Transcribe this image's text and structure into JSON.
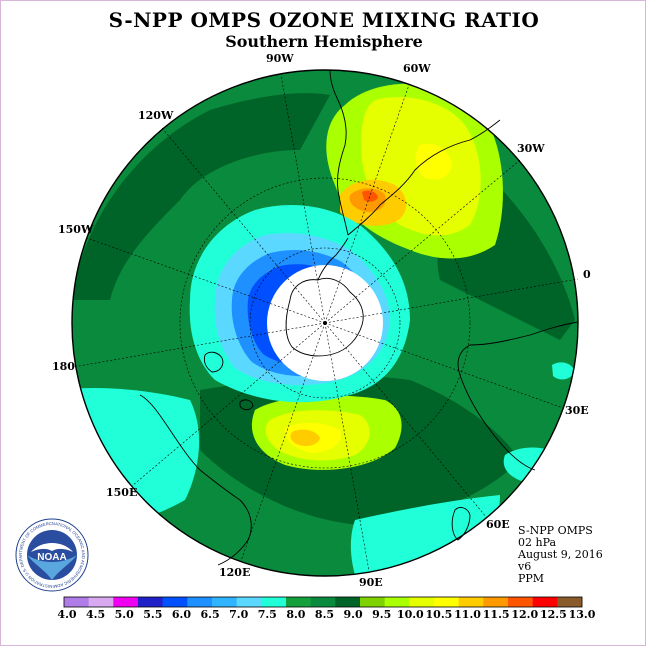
{
  "header": {
    "title": "S-NPP OMPS OZONE MIXING RATIO",
    "subtitle": "Southern Hemisphere"
  },
  "map": {
    "projection": "south-polar-stereographic",
    "longitude_labels": [
      "90W",
      "60W",
      "30W",
      "0",
      "30E",
      "60E",
      "90E",
      "120E",
      "150E",
      "180",
      "150W",
      "120W"
    ],
    "colors": {
      "ocean_background": "#0a8a3c",
      "land_outline": "#000000",
      "pole_fill": "#ffffff"
    }
  },
  "info": {
    "instrument": "S-NPP OMPS",
    "level": "02 hPa",
    "date": "August 9, 2016",
    "version": "v6",
    "units": "PPM"
  },
  "colorbar": {
    "ticks": [
      "4.0",
      "4.5",
      "5.0",
      "5.5",
      "6.0",
      "6.5",
      "7.0",
      "7.5",
      "8.0",
      "8.5",
      "9.0",
      "9.5",
      "10.0",
      "10.5",
      "11.0",
      "11.5",
      "12.0",
      "12.5",
      "13.0"
    ],
    "colors": [
      "#b07de8",
      "#d8a8f0",
      "#f000f0",
      "#2020c8",
      "#0050ff",
      "#1e90ff",
      "#30b4ff",
      "#5ad8ff",
      "#20ffd8",
      "#14a03c",
      "#0a8a3c",
      "#006428",
      "#7fd200",
      "#aaff00",
      "#e6ff00",
      "#ffff00",
      "#ffcc00",
      "#ff9900",
      "#ff5500",
      "#ff0000",
      "#8b5a2b"
    ]
  },
  "logo": {
    "text": "NOAA",
    "ring_text": "NATIONAL OCEANIC AND ATMOSPHERIC ADMINISTRATION U.S. DEPARTMENT OF COMMERCE"
  }
}
